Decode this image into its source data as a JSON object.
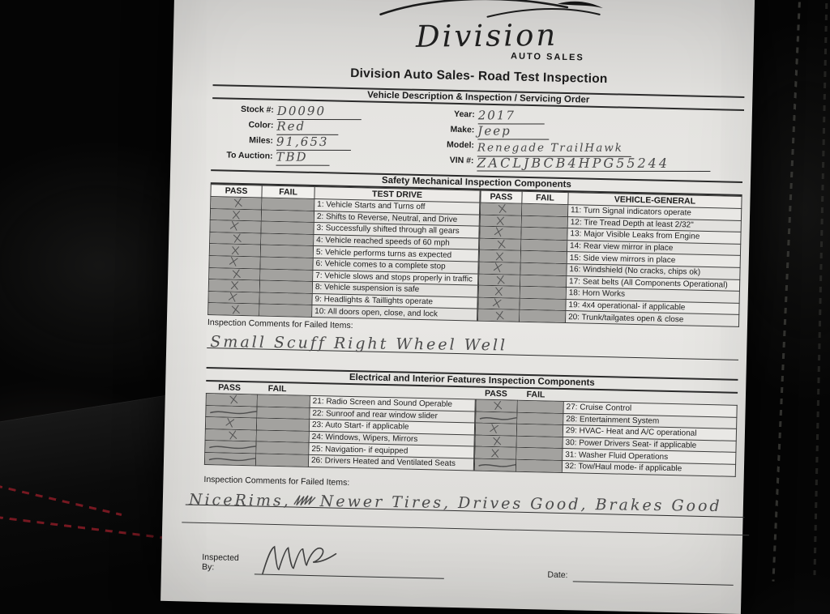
{
  "colors": {
    "paper": "#e9e8e5",
    "shaded_cell": "#a3a29f",
    "ink": "#1c1c1c",
    "handwriting": "#4b4b4b",
    "background_leather": "#050505",
    "red_stitch": "#8a1b25"
  },
  "logo": {
    "brand_script": "Division",
    "tagline": "AUTO SALES"
  },
  "title": "Division Auto Sales- Road Test Inspection",
  "vehicle_section": {
    "title": "Vehicle Description & Inspection / Servicing Order",
    "left_fields": [
      {
        "label": "Stock #:",
        "value": "D0090"
      },
      {
        "label": "Color:",
        "value": "Red"
      },
      {
        "label": "Miles:",
        "value": "91,653"
      },
      {
        "label": "To Auction:",
        "value": "TBD"
      }
    ],
    "right_fields": [
      {
        "label": "Year:",
        "value": "2017"
      },
      {
        "label": "Make:",
        "value": "Jeep"
      },
      {
        "label": "Model:",
        "value": "Renegade TrailHawk"
      },
      {
        "label": "VIN #:",
        "value": "ZACLJBCB4HPG55244"
      }
    ]
  },
  "safety_section": {
    "title": "Safety Mechanical Inspection Components",
    "left": {
      "headers": {
        "pass": "PASS",
        "fail": "FAIL",
        "desc": "TEST DRIVE"
      },
      "rows": [
        {
          "text": "1: Vehicle Starts and Turns off",
          "mark": "pass"
        },
        {
          "text": "2: Shifts to Reverse, Neutral, and Drive",
          "mark": "pass"
        },
        {
          "text": "3: Successfully shifted through all gears",
          "mark": "pass"
        },
        {
          "text": "4: Vehicle reached speeds of 60 mph",
          "mark": "pass"
        },
        {
          "text": "5: Vehicle performs turns as expected",
          "mark": "pass"
        },
        {
          "text": "6: Vehicle comes to a complete stop",
          "mark": "pass"
        },
        {
          "text": "7: Vehicle slows and stops properly in traffic",
          "mark": "pass"
        },
        {
          "text": "8: Vehicle suspension is safe",
          "mark": "pass"
        },
        {
          "text": "9: Headlights & Taillights operate",
          "mark": "pass"
        },
        {
          "text": "10: All doors open, close, and lock",
          "mark": "pass"
        }
      ]
    },
    "right": {
      "headers": {
        "pass": "PASS",
        "fail": "FAIL",
        "desc": "VEHICLE-GENERAL"
      },
      "rows": [
        {
          "text": "11: Turn Signal indicators operate",
          "mark": "pass"
        },
        {
          "text": "12: Tire Tread Depth at least 2/32\"",
          "mark": "pass"
        },
        {
          "text": "13: Major Visible Leaks from Engine",
          "mark": "pass"
        },
        {
          "text": "14: Rear view mirror in place",
          "mark": "pass"
        },
        {
          "text": "15: Side view mirrors in place",
          "mark": "pass"
        },
        {
          "text": "16: Windshield (No cracks, chips ok)",
          "mark": "pass"
        },
        {
          "text": "17: Seat belts (All Components Operational)",
          "mark": "pass"
        },
        {
          "text": "18: Horn Works",
          "mark": "pass"
        },
        {
          "text": "19: 4x4 operational- if applicable",
          "mark": "pass"
        },
        {
          "text": "20: Trunk/tailgates open & close",
          "mark": "pass"
        }
      ]
    }
  },
  "failed_comments_1": {
    "label": "Inspection Comments for Failed Items:",
    "text": "Small Scuff Right Wheel Well"
  },
  "electrical_section": {
    "title": "Electrical and Interior Features Inspection Components",
    "left": {
      "headers": {
        "pass": "PASS",
        "fail": "FAIL"
      },
      "rows": [
        {
          "text": "21: Radio Screen and Sound Operable",
          "mark": "pass"
        },
        {
          "text": "22: Sunroof and rear window slider",
          "mark": "na"
        },
        {
          "text": "23: Auto Start- if applicable",
          "mark": "pass"
        },
        {
          "text": "24: Windows, Wipers, Mirrors",
          "mark": "pass"
        },
        {
          "text": "25: Navigation- if equipped",
          "mark": "na"
        },
        {
          "text": "26: Drivers Heated and Ventilated Seats",
          "mark": "na"
        }
      ]
    },
    "right": {
      "headers": {
        "pass": "PASS",
        "fail": "FAIL"
      },
      "rows": [
        {
          "text": "27: Cruise Control",
          "mark": "pass"
        },
        {
          "text": "28: Entertainment System",
          "mark": "na"
        },
        {
          "text": "29: HVAC- Heat and A/C operational",
          "mark": "pass"
        },
        {
          "text": "30: Power Drivers Seat- if applicable",
          "mark": "pass"
        },
        {
          "text": "31: Washer Fluid Operations",
          "mark": "pass"
        },
        {
          "text": "32: Tow/Haul mode- if applicable",
          "mark": "na"
        }
      ]
    }
  },
  "failed_comments_2": {
    "label": "Inspection Comments for Failed Items:",
    "text_part1": "NiceRims,",
    "text_part2": "Newer Tires, Drives Good, Brakes Good",
    "crossout_note": "illegible crossed-out word"
  },
  "footer": {
    "inspected_by_label": "Inspected By:",
    "signature": "Will",
    "date_label": "Date:"
  }
}
